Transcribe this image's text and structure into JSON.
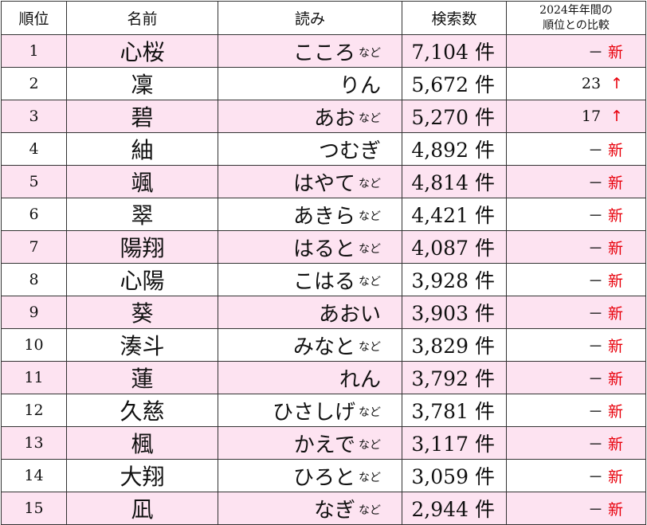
{
  "headers": {
    "rank": "順位",
    "name": "名前",
    "yomi": "読み",
    "count": "検索数",
    "compare_line1": "2024年年間の",
    "compare_line2": "順位との比較"
  },
  "unit": "件",
  "nado": "など",
  "new_label": "新",
  "dash": "－",
  "arrow_up": "↑",
  "rows": [
    {
      "rank": "1",
      "name": "心桜",
      "yomi": "こころ",
      "nado": true,
      "count": "7,104",
      "change": "new"
    },
    {
      "rank": "2",
      "name": "凜",
      "yomi": "りん",
      "nado": false,
      "count": "5,672",
      "change": "23"
    },
    {
      "rank": "3",
      "name": "碧",
      "yomi": "あお",
      "nado": true,
      "count": "5,270",
      "change": "17"
    },
    {
      "rank": "4",
      "name": "紬",
      "yomi": "つむぎ",
      "nado": false,
      "count": "4,892",
      "change": "new"
    },
    {
      "rank": "5",
      "name": "颯",
      "yomi": "はやて",
      "nado": true,
      "count": "4,814",
      "change": "new"
    },
    {
      "rank": "6",
      "name": "翠",
      "yomi": "あきら",
      "nado": true,
      "count": "4,421",
      "change": "new"
    },
    {
      "rank": "7",
      "name": "陽翔",
      "yomi": "はると",
      "nado": true,
      "count": "4,087",
      "change": "new"
    },
    {
      "rank": "8",
      "name": "心陽",
      "yomi": "こはる",
      "nado": true,
      "count": "3,928",
      "change": "new"
    },
    {
      "rank": "9",
      "name": "葵",
      "yomi": "あおい",
      "nado": false,
      "count": "3,903",
      "change": "new"
    },
    {
      "rank": "10",
      "name": "湊斗",
      "yomi": "みなと",
      "nado": true,
      "count": "3,829",
      "change": "new"
    },
    {
      "rank": "11",
      "name": "蓮",
      "yomi": "れん",
      "nado": false,
      "count": "3,792",
      "change": "new"
    },
    {
      "rank": "12",
      "name": "久慈",
      "yomi": "ひさしげ",
      "nado": true,
      "count": "3,781",
      "change": "new"
    },
    {
      "rank": "13",
      "name": "楓",
      "yomi": "かえで",
      "nado": true,
      "count": "3,117",
      "change": "new"
    },
    {
      "rank": "14",
      "name": "大翔",
      "yomi": "ひろと",
      "nado": true,
      "count": "3,059",
      "change": "new"
    },
    {
      "rank": "15",
      "name": "凪",
      "yomi": "なぎ",
      "nado": true,
      "count": "2,944",
      "change": "new"
    }
  ]
}
